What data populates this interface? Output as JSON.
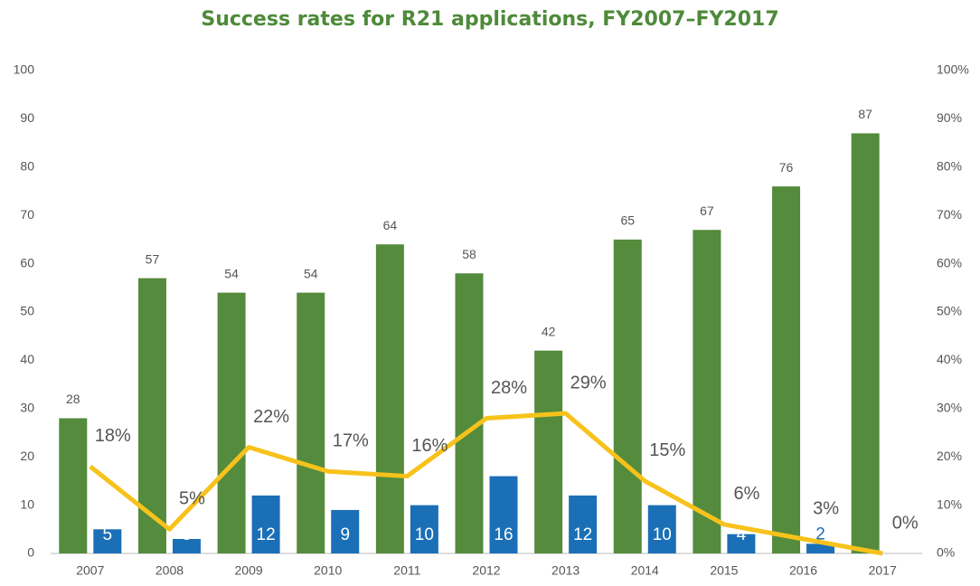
{
  "chart_data": {
    "type": "bar",
    "title": "Success rates for R21 applications, FY2007–FY2017",
    "categories": [
      "2007",
      "2008",
      "2009",
      "2010",
      "2011",
      "2012",
      "2013",
      "2014",
      "2015",
      "2016",
      "2017"
    ],
    "series": [
      {
        "color": "#548b3c",
        "values": [
          28,
          57,
          54,
          54,
          64,
          58,
          42,
          65,
          67,
          76,
          87
        ]
      },
      {
        "color": "#1b6fb6",
        "values": [
          5,
          3,
          12,
          9,
          10,
          16,
          12,
          10,
          4,
          2,
          null
        ]
      },
      {
        "type": "line",
        "axis": "y2",
        "color": "#f7c21b",
        "values": [
          18,
          5,
          22,
          17,
          16,
          28,
          29,
          15,
          6,
          3,
          0
        ],
        "value_labels": [
          "18%",
          "5%",
          "22%",
          "17%",
          "16%",
          "28%",
          "29%",
          "15%",
          "6%",
          "3%",
          "0%"
        ]
      }
    ],
    "ylim": [
      0,
      100
    ],
    "yticks": [
      0,
      10,
      20,
      30,
      40,
      50,
      60,
      70,
      80,
      90,
      100
    ],
    "y2lim": [
      0,
      100
    ],
    "y2ticks": [
      {
        "value": 0,
        "label": "0%"
      },
      {
        "value": 10,
        "label": "10%"
      },
      {
        "value": 20,
        "label": "20%"
      },
      {
        "value": 30,
        "label": "30%"
      },
      {
        "value": 40,
        "label": "40%"
      },
      {
        "value": 50,
        "label": "50%"
      },
      {
        "value": 60,
        "label": "60%"
      },
      {
        "value": 70,
        "label": "70%"
      },
      {
        "value": 80,
        "label": "80%"
      },
      {
        "value": 90,
        "label": "90%"
      },
      {
        "value": 100,
        "label": "100%"
      }
    ],
    "grid": false
  }
}
